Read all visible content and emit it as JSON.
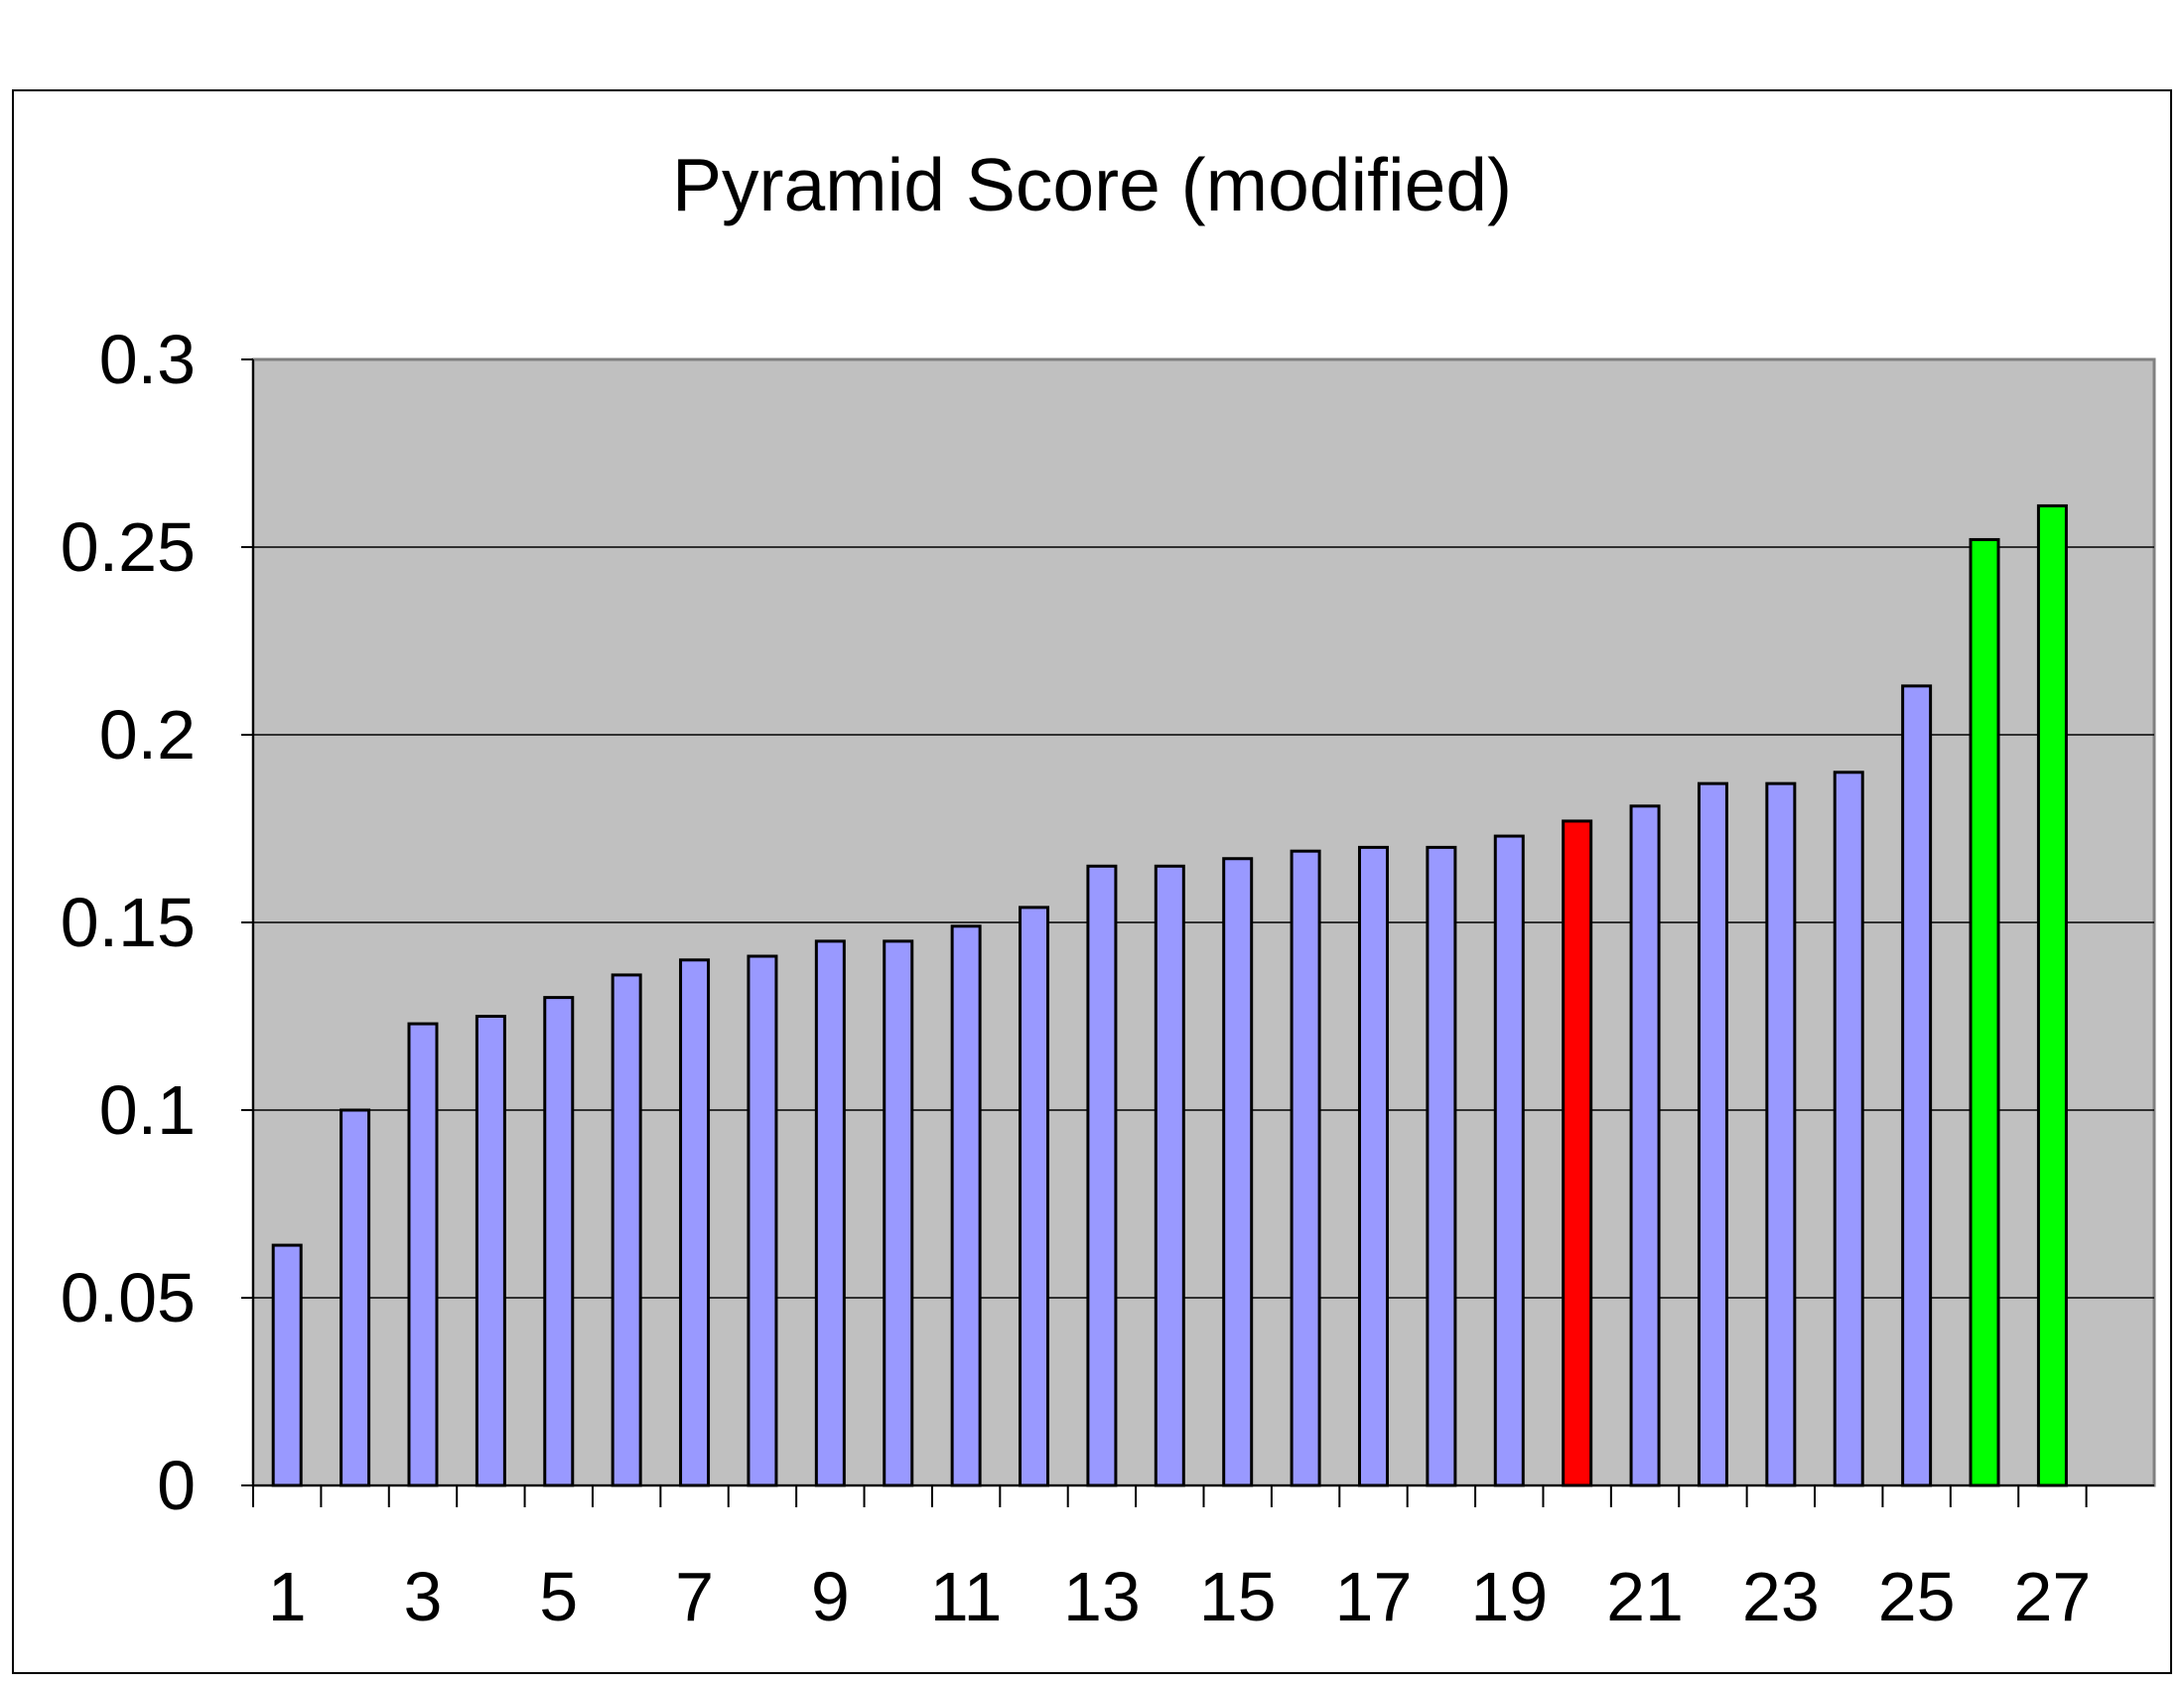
{
  "chart_data": {
    "type": "bar",
    "title": "Pyramid Score (modified)",
    "xlabel": "",
    "ylabel": "",
    "ylim": [
      0,
      0.3
    ],
    "yticks": [
      "0",
      "0.05",
      "0.1",
      "0.15",
      "0.2",
      "0.25",
      "0.3"
    ],
    "categories": [
      "1",
      "2",
      "3",
      "4",
      "5",
      "6",
      "7",
      "8",
      "9",
      "10",
      "11",
      "12",
      "13",
      "14",
      "15",
      "16",
      "17",
      "18",
      "19",
      "20",
      "21",
      "22",
      "23",
      "24",
      "25",
      "26",
      "27"
    ],
    "x_tick_labels": [
      "1",
      "3",
      "5",
      "7",
      "9",
      "11",
      "13",
      "15",
      "17",
      "19",
      "21",
      "23",
      "25",
      "27"
    ],
    "values": [
      0.064,
      0.1,
      0.123,
      0.125,
      0.13,
      0.136,
      0.14,
      0.141,
      0.145,
      0.145,
      0.149,
      0.154,
      0.165,
      0.165,
      0.167,
      0.169,
      0.17,
      0.17,
      0.173,
      0.177,
      0.181,
      0.187,
      0.187,
      0.19,
      0.213,
      0.252,
      0.261
    ],
    "bar_colors": [
      "#9999ff",
      "#9999ff",
      "#9999ff",
      "#9999ff",
      "#9999ff",
      "#9999ff",
      "#9999ff",
      "#9999ff",
      "#9999ff",
      "#9999ff",
      "#9999ff",
      "#9999ff",
      "#9999ff",
      "#9999ff",
      "#9999ff",
      "#9999ff",
      "#9999ff",
      "#9999ff",
      "#9999ff",
      "#ff0000",
      "#9999ff",
      "#9999ff",
      "#9999ff",
      "#9999ff",
      "#9999ff",
      "#00ff00",
      "#00ff00"
    ],
    "grid": true,
    "plot_background": "#c0c0c0",
    "legend": "none"
  }
}
